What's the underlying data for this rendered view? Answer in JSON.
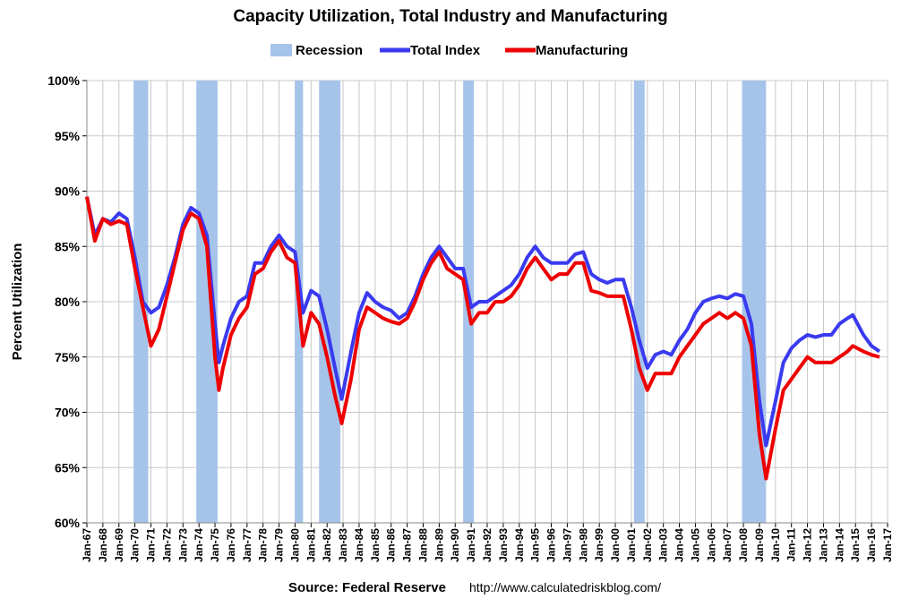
{
  "chart_data": {
    "type": "line",
    "title": "Capacity Utilization, Total Industry and Manufacturing",
    "y_label": "Percent Utilization",
    "source": "Source: Federal Reserve",
    "url": "http://www.calculatedriskblog.com/",
    "grid": true,
    "legend": "top",
    "ylim": [
      60,
      100
    ],
    "yticks": [
      {
        "value": 60,
        "label": "60%"
      },
      {
        "value": 65,
        "label": "65%"
      },
      {
        "value": 70,
        "label": "70%"
      },
      {
        "value": 75,
        "label": "75%"
      },
      {
        "value": 80,
        "label": "80%"
      },
      {
        "value": 85,
        "label": "85%"
      },
      {
        "value": 90,
        "label": "90%"
      },
      {
        "value": 95,
        "label": "95%"
      },
      {
        "value": 100,
        "label": "100%"
      }
    ],
    "xlim": [
      "Jan-67",
      "Jan-17"
    ],
    "xticks": [
      "Jan-67",
      "Jan-68",
      "Jan-69",
      "Jan-70",
      "Jan-71",
      "Jan-72",
      "Jan-73",
      "Jan-74",
      "Jan-75",
      "Jan-76",
      "Jan-77",
      "Jan-78",
      "Jan-79",
      "Jan-80",
      "Jan-81",
      "Jan-82",
      "Jan-83",
      "Jan-84",
      "Jan-85",
      "Jan-86",
      "Jan-87",
      "Jan-88",
      "Jan-89",
      "Jan-90",
      "Jan-91",
      "Jan-92",
      "Jan-93",
      "Jan-94",
      "Jan-95",
      "Jan-96",
      "Jan-97",
      "Jan-98",
      "Jan-99",
      "Jan-00",
      "Jan-01",
      "Jan-02",
      "Jan-03",
      "Jan-04",
      "Jan-05",
      "Jan-06",
      "Jan-07",
      "Jan-08",
      "Jan-09",
      "Jan-10",
      "Jan-11",
      "Jan-12",
      "Jan-13",
      "Jan-14",
      "Jan-15",
      "Jan-16",
      "Jan-17"
    ],
    "recessions": {
      "name": "Recession",
      "color": "#a6c4ea",
      "periods": [
        [
          "Dec-69",
          "Nov-70"
        ],
        [
          "Nov-73",
          "Mar-75"
        ],
        [
          "Jan-80",
          "Jul-80"
        ],
        [
          "Jul-81",
          "Nov-82"
        ],
        [
          "Jul-90",
          "Mar-91"
        ],
        [
          "Mar-01",
          "Nov-01"
        ],
        [
          "Dec-07",
          "Jun-09"
        ]
      ]
    },
    "x": [
      "Jan-67",
      "Jul-67",
      "Jan-68",
      "Jul-68",
      "Jan-69",
      "Jul-69",
      "Jan-70",
      "Jul-70",
      "Jan-71",
      "Jul-71",
      "Jan-72",
      "Jul-72",
      "Jan-73",
      "Jul-73",
      "Jan-74",
      "Jul-74",
      "Jan-75",
      "Apr-75",
      "Jul-75",
      "Jan-76",
      "Jul-76",
      "Jan-77",
      "Jul-77",
      "Jan-78",
      "Jul-78",
      "Jan-79",
      "Jul-79",
      "Jan-80",
      "Jul-80",
      "Jan-81",
      "Jul-81",
      "Jan-82",
      "Jul-82",
      "Dec-82",
      "Jul-83",
      "Jan-84",
      "Jul-84",
      "Jan-85",
      "Jul-85",
      "Jan-86",
      "Jul-86",
      "Jan-87",
      "Jul-87",
      "Jan-88",
      "Jul-88",
      "Jan-89",
      "Jul-89",
      "Jan-90",
      "Jul-90",
      "Jan-91",
      "Jul-91",
      "Jan-92",
      "Jul-92",
      "Jan-93",
      "Jul-93",
      "Jan-94",
      "Jul-94",
      "Jan-95",
      "Jul-95",
      "Jan-96",
      "Jul-96",
      "Jan-97",
      "Jul-97",
      "Jan-98",
      "Jul-98",
      "Jan-99",
      "Jul-99",
      "Jan-00",
      "Jul-00",
      "Jan-01",
      "Jul-01",
      "Jan-02",
      "Jul-02",
      "Jan-03",
      "Jul-03",
      "Jan-04",
      "Jul-04",
      "Jan-05",
      "Jul-05",
      "Jan-06",
      "Jul-06",
      "Jan-07",
      "Jul-07",
      "Jan-08",
      "Jul-08",
      "Jan-09",
      "Jun-09",
      "Jan-10",
      "Jul-10",
      "Jan-11",
      "Jul-11",
      "Jan-12",
      "Jul-12",
      "Jan-13",
      "Jul-13",
      "Jan-14",
      "Jul-14",
      "Nov-14",
      "Jul-15",
      "Jan-16",
      "Jul-16"
    ],
    "series": [
      {
        "name": "Total Index",
        "color": "#3a3af0",
        "values": [
          89.5,
          86,
          87.5,
          87.2,
          88,
          87.5,
          84,
          80,
          79,
          79.5,
          81.5,
          84,
          87,
          88.5,
          88,
          86,
          78,
          74.5,
          76,
          78.5,
          80,
          80.5,
          83.5,
          83.5,
          85,
          86,
          85,
          84.5,
          79,
          81,
          80.5,
          77.5,
          74,
          71.2,
          75.5,
          79,
          80.8,
          80,
          79.5,
          79.2,
          78.5,
          79,
          80.5,
          82.5,
          84,
          85,
          84,
          83,
          83,
          79.5,
          80,
          80,
          80.5,
          81,
          81.5,
          82.5,
          84,
          85,
          84,
          83.5,
          83.5,
          83.5,
          84.3,
          84.5,
          82.5,
          82,
          81.7,
          82,
          82,
          79.5,
          76.5,
          74,
          75.2,
          75.5,
          75.2,
          76.5,
          77.5,
          79,
          80,
          80.3,
          80.5,
          80.3,
          80.7,
          80.5,
          78,
          71,
          67,
          71,
          74.5,
          75.8,
          76.5,
          77,
          76.8,
          77,
          77,
          78,
          78.5,
          78.8,
          77,
          76,
          75.5
        ]
      },
      {
        "name": "Manufacturing",
        "color": "#ee0000",
        "values": [
          89.5,
          85.5,
          87.5,
          87,
          87.3,
          87,
          83,
          79.5,
          76,
          77.5,
          80.5,
          83.5,
          86.5,
          88,
          87.5,
          85,
          75,
          72,
          74,
          77,
          78.5,
          79.5,
          82.5,
          83,
          84.5,
          85.5,
          84,
          83.5,
          76,
          79,
          78,
          75,
          71.5,
          69,
          73,
          77.5,
          79.5,
          79,
          78.5,
          78.2,
          78,
          78.5,
          80,
          82,
          83.5,
          84.5,
          83,
          82.5,
          82,
          78,
          79,
          79,
          80,
          80,
          80.5,
          81.5,
          83,
          84,
          83,
          82,
          82.5,
          82.5,
          83.5,
          83.5,
          81,
          80.8,
          80.5,
          80.5,
          80.5,
          77.5,
          74,
          72,
          73.5,
          73.5,
          73.5,
          75,
          76,
          77,
          78,
          78.5,
          79,
          78.5,
          79,
          78.5,
          76,
          68,
          64,
          68.5,
          72,
          73,
          74,
          75,
          74.5,
          74.5,
          74.5,
          75,
          75.5,
          76,
          75.5,
          75.2,
          75
        ]
      }
    ]
  }
}
